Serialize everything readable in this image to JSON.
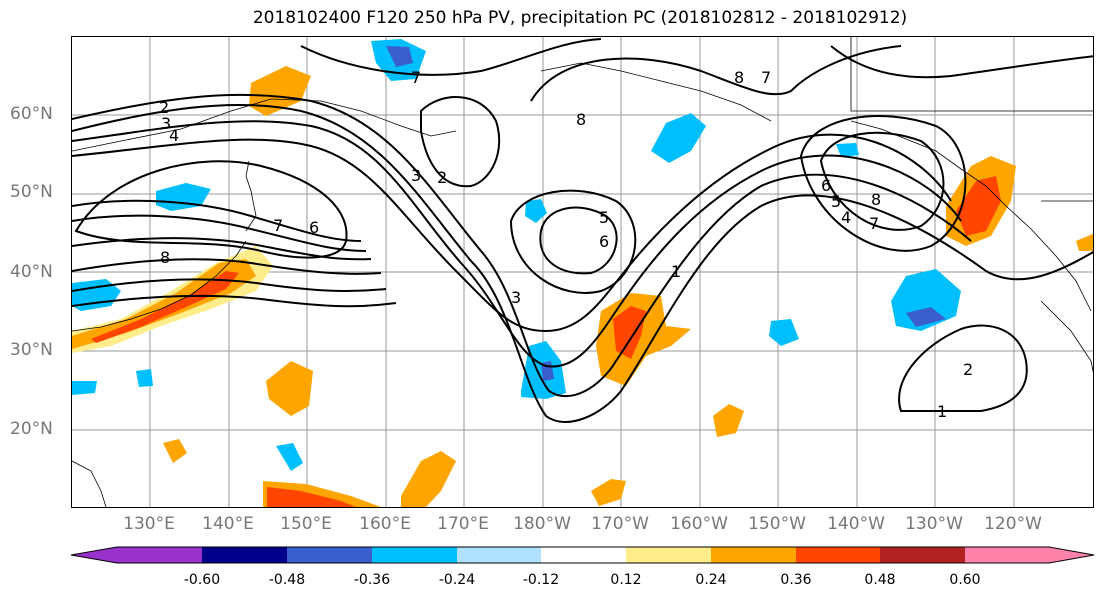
{
  "title": "2018102400 F120 250 hPa PV, precipitation PC (2018102812 - 2018102912)",
  "lat_labels": [
    "60°N",
    "50°N",
    "40°N",
    "30°N",
    "20°N"
  ],
  "lon_labels": [
    "130°E",
    "140°E",
    "150°E",
    "160°E",
    "170°E",
    "180°W",
    "170°W",
    "160°W",
    "150°W",
    "140°W",
    "130°W",
    "120°W"
  ],
  "colorbar": {
    "labels": [
      "-0.60",
      "-0.48",
      "-0.36",
      "-0.24",
      "-0.12",
      "0.12",
      "0.24",
      "0.36",
      "0.48",
      "0.60"
    ],
    "colors": [
      "#9932cc",
      "#00008b",
      "#3a5fcd",
      "#00bfff",
      "#b0e2ff",
      "#ffffff",
      "#ffec8b",
      "#ffa500",
      "#ff4500",
      "#b22222",
      "#ff82ab"
    ]
  },
  "contour_labels": [
    "1",
    "2",
    "3",
    "4",
    "5",
    "6",
    "7",
    "8"
  ],
  "colors": {
    "negative_strong": "#3a5fcd",
    "negative": "#00bfff",
    "positive": "#ffa500",
    "positive_strong": "#ff4500",
    "grid": "#999999"
  }
}
